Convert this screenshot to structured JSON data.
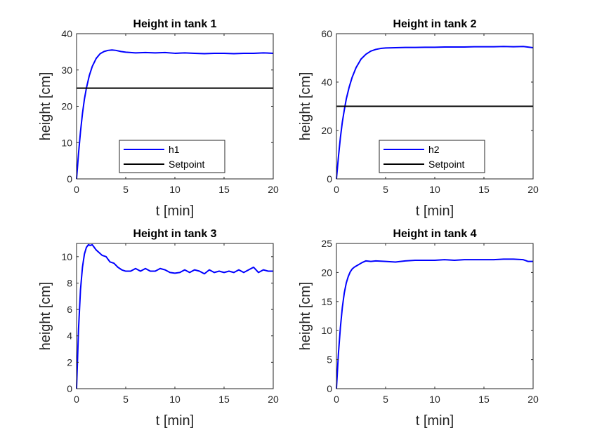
{
  "colors": {
    "series_blue": "#0000ff",
    "setpoint_black": "#000000",
    "axis": "#262626",
    "background": "#ffffff"
  },
  "chart_data": [
    {
      "type": "line",
      "title": "Height in tank 1",
      "xlabel": "t [min]",
      "ylabel": "height [cm]",
      "xlim": [
        0,
        20
      ],
      "ylim": [
        0,
        40
      ],
      "xticks": [
        0,
        5,
        10,
        15,
        20
      ],
      "yticks": [
        0,
        10,
        20,
        30,
        40
      ],
      "legend_position": "bottom-center",
      "series": [
        {
          "name": "h1",
          "color": "#0000ff",
          "x": [
            0,
            0.2,
            0.4,
            0.6,
            0.8,
            1.0,
            1.3,
            1.6,
            2.0,
            2.4,
            2.8,
            3.2,
            3.6,
            4.0,
            4.5,
            5.0,
            6,
            7,
            8,
            9,
            10,
            11,
            12,
            13,
            14,
            15,
            16,
            17,
            18,
            19,
            20
          ],
          "y": [
            0,
            7,
            13,
            18,
            22,
            25,
            28.5,
            31,
            33.2,
            34.5,
            35.1,
            35.4,
            35.5,
            35.4,
            35.1,
            34.9,
            34.7,
            34.8,
            34.7,
            34.8,
            34.6,
            34.7,
            34.6,
            34.5,
            34.6,
            34.6,
            34.5,
            34.6,
            34.6,
            34.7,
            34.6
          ]
        },
        {
          "name": "Setpoint",
          "color": "#000000",
          "x": [
            0,
            20
          ],
          "y": [
            25,
            25
          ]
        }
      ]
    },
    {
      "type": "line",
      "title": "Height in tank 2",
      "xlabel": "t [min]",
      "ylabel": "height [cm]",
      "xlim": [
        0,
        20
      ],
      "ylim": [
        0,
        60
      ],
      "xticks": [
        0,
        5,
        10,
        15,
        20
      ],
      "yticks": [
        0,
        20,
        40,
        60
      ],
      "legend_position": "bottom-center",
      "series": [
        {
          "name": "h2",
          "color": "#0000ff",
          "x": [
            0,
            0.2,
            0.4,
            0.6,
            0.8,
            1.0,
            1.3,
            1.6,
            2.0,
            2.5,
            3.0,
            3.5,
            4.0,
            4.5,
            5.0,
            6,
            7,
            8,
            9,
            10,
            11,
            12,
            13,
            14,
            15,
            16,
            17,
            18,
            19,
            20
          ],
          "y": [
            0,
            9,
            17,
            23.5,
            28.5,
            33,
            38,
            42,
            46,
            49.5,
            51.5,
            52.8,
            53.5,
            53.9,
            54.1,
            54.2,
            54.3,
            54.3,
            54.4,
            54.4,
            54.5,
            54.5,
            54.5,
            54.6,
            54.6,
            54.6,
            54.7,
            54.6,
            54.7,
            54.2
          ]
        },
        {
          "name": "Setpoint",
          "color": "#000000",
          "x": [
            0,
            20
          ],
          "y": [
            30,
            30
          ]
        }
      ]
    },
    {
      "type": "line",
      "title": "Height in tank 3",
      "xlabel": "t [min]",
      "ylabel": "height [cm]",
      "xlim": [
        0,
        20
      ],
      "ylim": [
        0,
        11
      ],
      "xticks": [
        0,
        5,
        10,
        15,
        20
      ],
      "yticks": [
        0,
        2,
        4,
        6,
        8,
        10
      ],
      "series": [
        {
          "name": "",
          "color": "#0000ff",
          "x": [
            0,
            0.2,
            0.4,
            0.6,
            0.8,
            1.0,
            1.2,
            1.4,
            1.6,
            1.8,
            2.0,
            2.3,
            2.6,
            3.0,
            3.4,
            3.8,
            4.2,
            4.6,
            5.0,
            5.5,
            6.0,
            6.5,
            7.0,
            7.5,
            8.0,
            8.5,
            9.0,
            9.5,
            10.0,
            10.5,
            11.0,
            11.5,
            12.0,
            12.5,
            13.0,
            13.5,
            14.0,
            14.5,
            15.0,
            15.5,
            16.0,
            16.5,
            17.0,
            17.5,
            18.0,
            18.5,
            19.0,
            19.5,
            20.0
          ],
          "y": [
            0,
            4.5,
            7.5,
            9.2,
            10.2,
            10.7,
            10.9,
            10.85,
            10.9,
            10.7,
            10.5,
            10.3,
            10.1,
            10.0,
            9.6,
            9.5,
            9.2,
            9.0,
            8.9,
            8.9,
            9.1,
            8.9,
            9.1,
            8.9,
            8.9,
            9.1,
            9.0,
            8.8,
            8.75,
            8.8,
            9.0,
            8.8,
            9.0,
            8.9,
            8.7,
            9.0,
            8.8,
            8.9,
            8.8,
            8.9,
            8.8,
            9.0,
            8.8,
            9.0,
            9.2,
            8.8,
            9.0,
            8.9,
            8.9
          ]
        }
      ]
    },
    {
      "type": "line",
      "title": "Height in tank 4",
      "xlabel": "t [min]",
      "ylabel": "height [cm]",
      "xlim": [
        0,
        20
      ],
      "ylim": [
        0,
        25
      ],
      "xticks": [
        0,
        5,
        10,
        15,
        20
      ],
      "yticks": [
        0,
        5,
        10,
        15,
        20,
        25
      ],
      "series": [
        {
          "name": "",
          "color": "#0000ff",
          "x": [
            0,
            0.2,
            0.4,
            0.6,
            0.8,
            1.0,
            1.2,
            1.4,
            1.6,
            1.8,
            2.0,
            2.3,
            2.6,
            3.0,
            3.5,
            4,
            5,
            6,
            7,
            8,
            9,
            10,
            11,
            12,
            13,
            14,
            15,
            16,
            17,
            18,
            19,
            19.5,
            20
          ],
          "y": [
            0,
            6,
            10.5,
            14,
            16.5,
            18.2,
            19.3,
            20.1,
            20.6,
            20.9,
            21.1,
            21.4,
            21.7,
            22.0,
            21.9,
            22.0,
            21.9,
            21.8,
            22.0,
            22.1,
            22.1,
            22.1,
            22.2,
            22.1,
            22.2,
            22.2,
            22.2,
            22.2,
            22.3,
            22.3,
            22.2,
            21.9,
            21.9
          ]
        }
      ]
    }
  ]
}
